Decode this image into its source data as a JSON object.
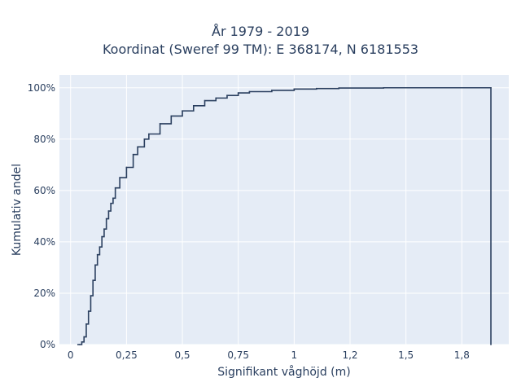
{
  "chart_data": {
    "type": "line",
    "step": true,
    "title_lines": [
      "År 1979 - 2019",
      "Koordinat (Sweref 99 TM): E 368174, N 6181553"
    ],
    "xlabel": "Signifikant våghöjd (m)",
    "ylabel": "Kumulativ andel",
    "xlim": [
      -0.05,
      1.96
    ],
    "ylim": [
      0,
      1.05
    ],
    "x_ticks": [
      0,
      0.25,
      0.5,
      0.75,
      1.0,
      1.25,
      1.5,
      1.75
    ],
    "x_tick_labels": [
      "0",
      "0,25",
      "0,5",
      "0,75",
      "1",
      "1,2",
      "1,5",
      "1,8"
    ],
    "y_ticks": [
      0,
      0.2,
      0.4,
      0.6,
      0.8,
      1.0
    ],
    "y_tick_labels": [
      "0%",
      "20%",
      "40%",
      "60%",
      "80%",
      "100%"
    ],
    "grid": true,
    "colors": {
      "line": "#2a3f5f",
      "plot_bg": "#e5ecf6",
      "grid": "#ffffff"
    },
    "series": [
      {
        "x": [
          0.04,
          0.05,
          0.06,
          0.07,
          0.08,
          0.09,
          0.1,
          0.11,
          0.12,
          0.13,
          0.14,
          0.15,
          0.16,
          0.17,
          0.18,
          0.19,
          0.2,
          0.22,
          0.25,
          0.28,
          0.3,
          0.33,
          0.35,
          0.4,
          0.45,
          0.5,
          0.55,
          0.6,
          0.65,
          0.7,
          0.75,
          0.8,
          0.9,
          1.0,
          1.1,
          1.2,
          1.4,
          1.6,
          1.88,
          1.88
        ],
        "y": [
          0.0,
          0.01,
          0.03,
          0.08,
          0.13,
          0.19,
          0.25,
          0.31,
          0.35,
          0.38,
          0.42,
          0.45,
          0.49,
          0.52,
          0.55,
          0.57,
          0.61,
          0.65,
          0.69,
          0.74,
          0.77,
          0.8,
          0.82,
          0.86,
          0.89,
          0.91,
          0.93,
          0.95,
          0.96,
          0.97,
          0.98,
          0.985,
          0.99,
          0.995,
          0.997,
          0.999,
          1.0,
          1.0,
          1.0,
          0.0
        ]
      }
    ]
  }
}
